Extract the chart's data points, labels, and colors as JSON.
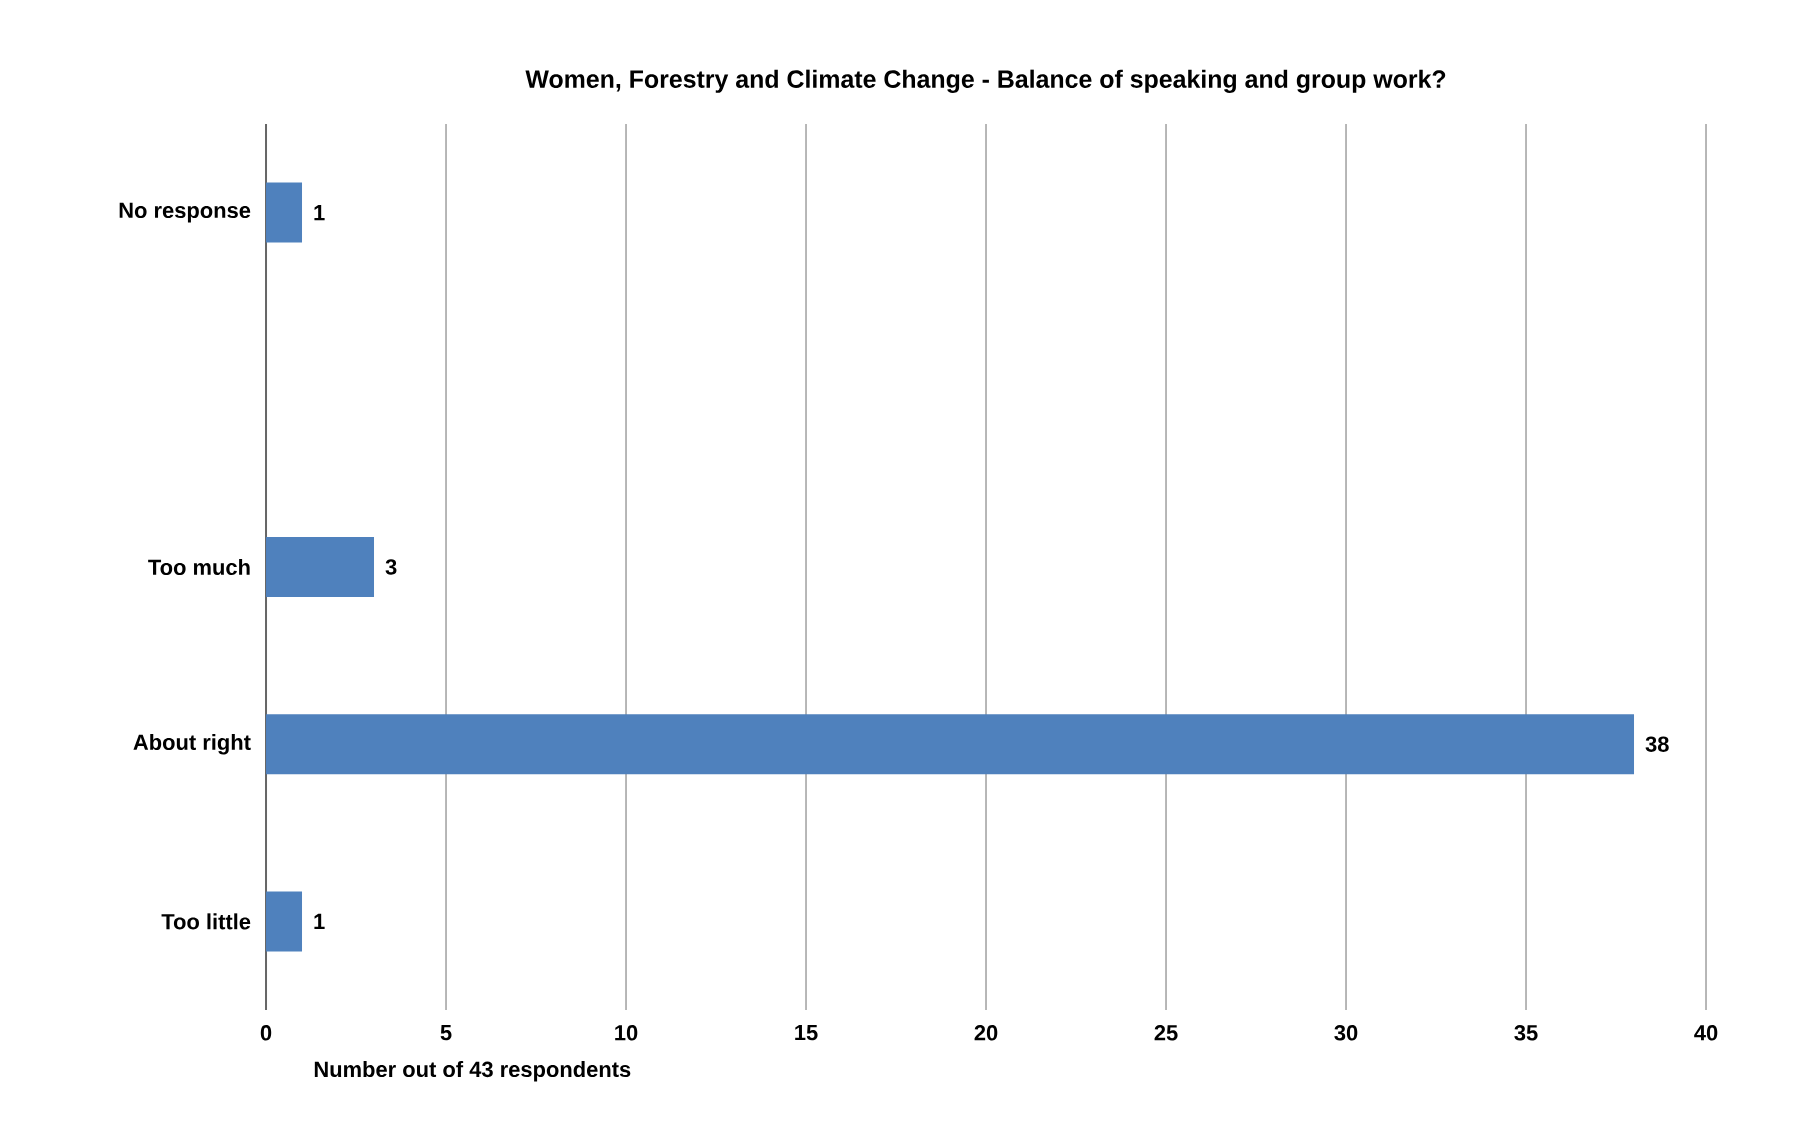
{
  "chart_data": {
    "type": "bar",
    "orientation": "horizontal",
    "title": "Women, Forestry and Climate Change - Balance of speaking  and group work?",
    "xlabel": "Number out of 43 respondents",
    "categories": [
      "No response",
      null,
      "Too much",
      "About right",
      "Too little"
    ],
    "values": [
      1,
      null,
      3,
      38,
      1
    ],
    "color": "#4f81bd",
    "xlim": [
      0,
      40
    ],
    "xticks": [
      0,
      5,
      10,
      15,
      20,
      25,
      30,
      35,
      40
    ],
    "grid": "x",
    "data_labels": true
  }
}
